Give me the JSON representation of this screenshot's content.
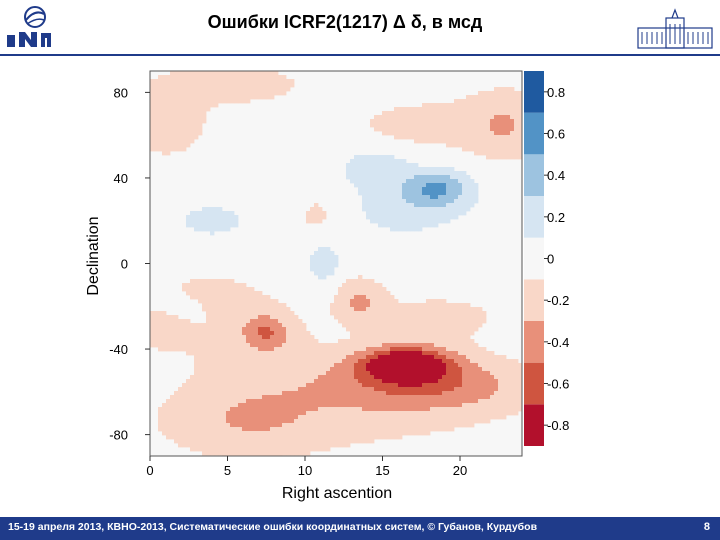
{
  "header": {
    "title": "Ошибки ICRF2(1217) Δ δ,  в мсд"
  },
  "footer": {
    "text": "15-19  апреля  2013,  КВНО-2013,  Систематические ошибки координатных систем, © Губанов, Курдубов",
    "page_number": "8"
  },
  "colors": {
    "brand": "#1f3b8a",
    "levels": [
      "#b2102c",
      "#cf5540",
      "#e8907a",
      "#f9d7c8",
      "#f7f7f7",
      "#d6e5f2",
      "#9dc3e0",
      "#5293c6",
      "#1f5aa0"
    ]
  },
  "chart_data": {
    "type": "heatmap",
    "subtype": "filled contour",
    "title": "",
    "xlabel": "Right ascention",
    "ylabel": "Declination",
    "xlim": [
      0,
      24
    ],
    "ylim": [
      -90,
      90
    ],
    "xticks": [
      0,
      5,
      10,
      15,
      20
    ],
    "yticks": [
      -80,
      -40,
      0,
      40,
      80
    ],
    "colorbar": {
      "ticks": [
        0.8,
        0.6,
        0.4,
        0.2,
        0,
        -0.2,
        -0.4,
        -0.6,
        -0.8
      ],
      "tick_labels": [
        "0.8",
        "0.6",
        "0.4",
        "0.2",
        "0",
        "-0.2",
        "-0.4",
        "-0.6",
        "-0.8"
      ],
      "range": [
        -0.9,
        0.9
      ],
      "step": 0.2
    },
    "grid": false,
    "features": [
      {
        "ra": 16.5,
        "dec": -47,
        "ra_width": 2.8,
        "dec_width": 8,
        "value": -0.9
      },
      {
        "ra": 15.5,
        "dec": -55,
        "ra_width": 6.0,
        "dec_width": 14,
        "value": -0.3
      },
      {
        "ra": 20,
        "dec": -57,
        "ra_width": 5.0,
        "dec_width": 12,
        "value": -0.25
      },
      {
        "ra": 7.5,
        "dec": -32,
        "ra_width": 1.5,
        "dec_width": 8,
        "value": -0.4
      },
      {
        "ra": 6.5,
        "dec": -40,
        "ra_width": 4.5,
        "dec_width": 25,
        "value": -0.15
      },
      {
        "ra": 6,
        "dec": -75,
        "ra_width": 5.0,
        "dec_width": 16,
        "value": -0.2
      },
      {
        "ra": 12,
        "dec": -70,
        "ra_width": 10.0,
        "dec_width": 18,
        "value": -0.15
      },
      {
        "ra": 1,
        "dec": 65,
        "ra_width": 2.5,
        "dec_width": 14,
        "value": -0.25
      },
      {
        "ra": 23,
        "dec": 65,
        "ra_width": 2.5,
        "dec_width": 16,
        "value": -0.25
      },
      {
        "ra": 5,
        "dec": 84,
        "ra_width": 5.0,
        "dec_width": 10,
        "value": -0.2
      },
      {
        "ra": 13.5,
        "dec": -17,
        "ra_width": 1.5,
        "dec_width": 10,
        "value": -0.3
      },
      {
        "ra": 3,
        "dec": -15,
        "ra_width": 4.0,
        "dec_width": 12,
        "value": -0.15
      },
      {
        "ra": 18.5,
        "dec": -25,
        "ra_width": 5.0,
        "dec_width": 12,
        "value": -0.15
      },
      {
        "ra": 1,
        "dec": -30,
        "ra_width": 2.0,
        "dec_width": 10,
        "value": -0.2
      },
      {
        "ra": 11,
        "dec": 20,
        "ra_width": 2.0,
        "dec_width": 20,
        "value": -0.15
      },
      {
        "ra": 18,
        "dec": 65,
        "ra_width": 6.0,
        "dec_width": 14,
        "value": -0.15
      },
      {
        "ra": 18.5,
        "dec": 35,
        "ra_width": 2.0,
        "dec_width": 8,
        "value": 0.45
      },
      {
        "ra": 16.5,
        "dec": 28,
        "ra_width": 4.0,
        "dec_width": 15,
        "value": 0.2
      },
      {
        "ra": 14.5,
        "dec": 45,
        "ra_width": 2.0,
        "dec_width": 8,
        "value": 0.25
      },
      {
        "ra": 11.2,
        "dec": 2,
        "ra_width": 1.3,
        "dec_width": 12,
        "value": 0.25
      },
      {
        "ra": 4,
        "dec": 20,
        "ra_width": 2.0,
        "dec_width": 7,
        "value": 0.2
      },
      {
        "ra": 2,
        "dec": -22,
        "ra_width": 2.0,
        "dec_width": 10,
        "value": 0.15
      }
    ]
  }
}
